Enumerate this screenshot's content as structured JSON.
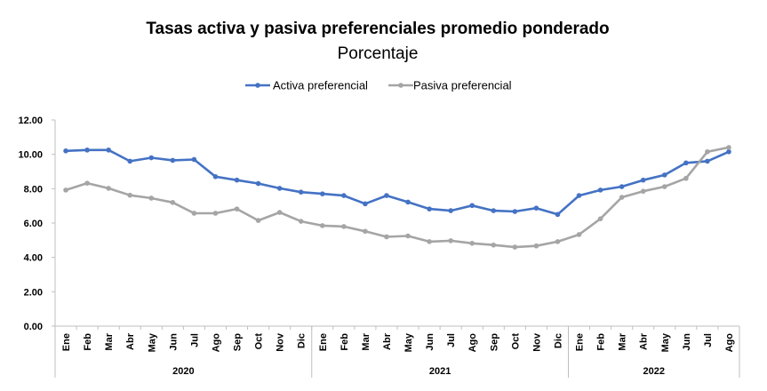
{
  "chart_data": {
    "type": "line",
    "title": "Tasas activa y pasiva preferenciales promedio ponderado",
    "subtitle": "Porcentaje",
    "ylim": [
      0,
      12
    ],
    "yticks": [
      "0.00",
      "2.00",
      "4.00",
      "6.00",
      "8.00",
      "10.00",
      "12.00"
    ],
    "grid": false,
    "legend_position": "top-center",
    "categories": [
      "Ene",
      "Feb",
      "Mar",
      "Abr",
      "May",
      "Jun",
      "Jul",
      "Ago",
      "Sep",
      "Oct",
      "Nov",
      "Dic",
      "Ene",
      "Feb",
      "Mar",
      "Abr",
      "May",
      "Jun",
      "Jul",
      "Ago",
      "Sep",
      "Oct",
      "Nov",
      "Dic",
      "Ene",
      "Feb",
      "Mar",
      "Abr",
      "May",
      "Jun",
      "Jul",
      "Ago"
    ],
    "groups": [
      {
        "label": "2020",
        "count": 12
      },
      {
        "label": "2021",
        "count": 12
      },
      {
        "label": "2022",
        "count": 8
      }
    ],
    "series": [
      {
        "name": "Activa preferencial",
        "color": "#4472C4",
        "values": [
          10.2,
          10.25,
          10.25,
          9.6,
          9.8,
          9.65,
          9.7,
          8.7,
          8.5,
          8.3,
          8.02,
          7.8,
          7.7,
          7.6,
          7.12,
          7.6,
          7.22,
          6.82,
          6.72,
          7.02,
          6.72,
          6.67,
          6.87,
          6.5,
          7.6,
          7.92,
          8.12,
          8.5,
          8.8,
          9.5,
          9.6,
          10.15
        ]
      },
      {
        "name": "Pasiva preferencial",
        "color": "#A5A5A5",
        "values": [
          7.92,
          8.32,
          8.02,
          7.62,
          7.45,
          7.2,
          6.57,
          6.57,
          6.82,
          6.15,
          6.62,
          6.1,
          5.85,
          5.8,
          5.52,
          5.2,
          5.25,
          4.92,
          4.97,
          4.82,
          4.72,
          4.6,
          4.67,
          4.92,
          5.33,
          6.25,
          7.5,
          7.85,
          8.12,
          8.6,
          10.15,
          10.4
        ]
      }
    ]
  }
}
